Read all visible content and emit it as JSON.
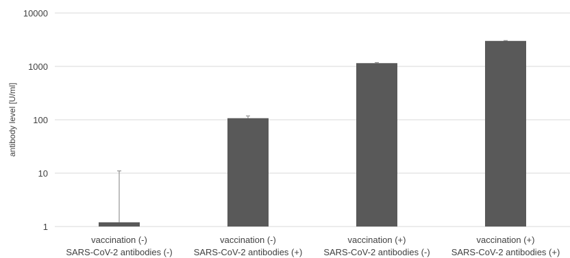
{
  "chart_data": {
    "type": "bar",
    "title": "",
    "ylabel": "antibody level [U/ml]",
    "xlabel": "",
    "yscale": "log",
    "ylim": [
      1,
      10000
    ],
    "yticks": [
      1,
      10,
      100,
      1000,
      10000
    ],
    "ytick_labels": [
      "1",
      "10",
      "100",
      "1000",
      "10000"
    ],
    "grid": true,
    "legend": "none",
    "categories": [
      [
        "vaccination (-)",
        "SARS-CoV-2 antibodies (-)"
      ],
      [
        "vaccination (-)",
        "SARS-CoV-2 antibodies (+)"
      ],
      [
        "vaccination (+)",
        "SARS-CoV-2 antibodies (-)"
      ],
      [
        "vaccination (+)",
        "SARS-CoV-2 antibodies (+)"
      ]
    ],
    "values": [
      1.2,
      107,
      1150,
      3000
    ],
    "error_upper": [
      11,
      118,
      1180,
      3050
    ],
    "colors": {
      "bar": "#595959",
      "grid": "#d9d9d9",
      "error": "#7f7f7f",
      "text": "#404040"
    }
  }
}
